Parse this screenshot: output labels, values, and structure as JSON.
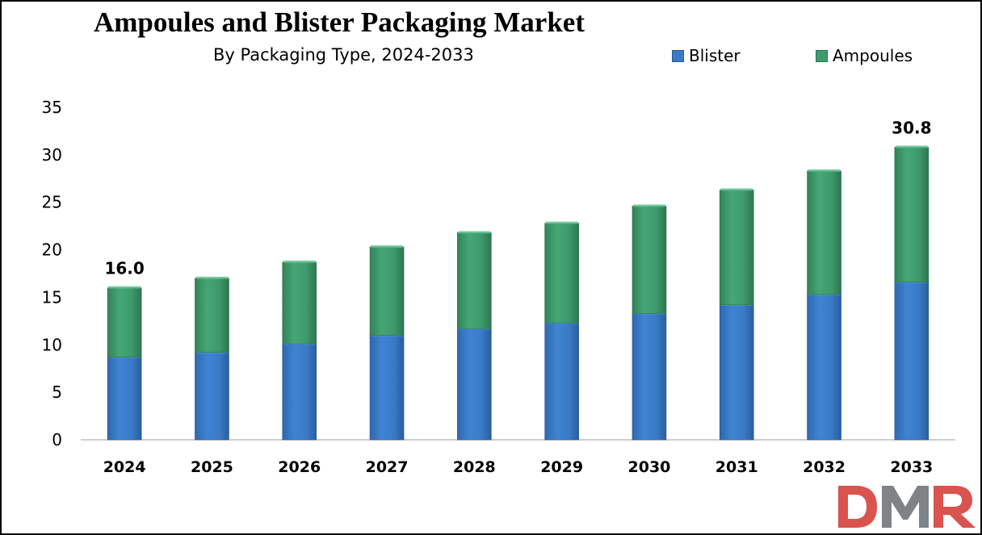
{
  "title": "Ampoules and Blister Packaging Market",
  "subtitle": "By Packaging Type, 2024-2033",
  "logo_text": "DMR",
  "colors": {
    "blister": "#3a7bc8",
    "ampoules": "#3e9a6c",
    "logo_red": "#d9534f",
    "logo_gray": "#7f8385"
  },
  "chart_data": {
    "type": "bar",
    "stacked": true,
    "categories": [
      "2024",
      "2025",
      "2026",
      "2027",
      "2028",
      "2029",
      "2030",
      "2031",
      "2032",
      "2033"
    ],
    "series": [
      {
        "name": "Blister",
        "values": [
          8.7,
          9.2,
          10.1,
          11.0,
          11.7,
          12.3,
          13.3,
          14.2,
          15.3,
          16.6
        ]
      },
      {
        "name": "Ampoules",
        "values": [
          7.3,
          7.8,
          8.6,
          9.3,
          10.1,
          10.5,
          11.3,
          12.1,
          13.0,
          14.2
        ]
      }
    ],
    "data_labels": [
      {
        "category": "2024",
        "text": "16.0"
      },
      {
        "category": "2033",
        "text": "30.8"
      }
    ],
    "y_ticks": [
      "0",
      "5",
      "10",
      "15",
      "20",
      "25",
      "30",
      "35"
    ],
    "ylim": [
      0,
      35
    ],
    "grid": false,
    "legend_position": "top-right"
  }
}
